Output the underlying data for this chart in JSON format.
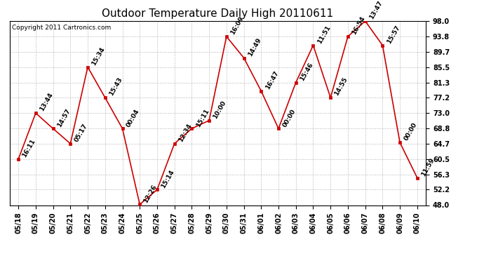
{
  "title": "Outdoor Temperature Daily High 20110611",
  "copyright": "Copyright 2011 Cartronics.com",
  "x_labels": [
    "05/18",
    "05/19",
    "05/20",
    "05/21",
    "05/22",
    "05/23",
    "05/24",
    "05/25",
    "05/26",
    "05/27",
    "05/28",
    "05/29",
    "05/30",
    "05/31",
    "06/01",
    "06/02",
    "06/03",
    "06/04",
    "06/05",
    "06/06",
    "06/07",
    "06/08",
    "06/09",
    "06/10"
  ],
  "y_values": [
    60.5,
    73.0,
    68.8,
    64.7,
    85.5,
    77.2,
    68.8,
    48.2,
    52.2,
    64.7,
    68.8,
    71.0,
    93.8,
    88.0,
    79.0,
    68.8,
    81.3,
    91.4,
    77.2,
    93.8,
    98.0,
    91.4,
    65.0,
    55.4
  ],
  "time_labels": [
    "16:11",
    "13:44",
    "14:57",
    "05:17",
    "15:34",
    "15:43",
    "00:04",
    "12:26",
    "15:14",
    "12:34",
    "15:11",
    "10:00",
    "16:09",
    "14:49",
    "16:47",
    "00:00",
    "15:46",
    "11:51",
    "14:55",
    "16:54",
    "13:47",
    "15:57",
    "00:00",
    "11:59"
  ],
  "ylim": [
    48.0,
    98.0
  ],
  "yticks": [
    48.0,
    52.2,
    56.3,
    60.5,
    64.7,
    68.8,
    73.0,
    77.2,
    81.3,
    85.5,
    89.7,
    93.8,
    98.0
  ],
  "line_color": "#cc0000",
  "marker_color": "#cc0000",
  "background_color": "#ffffff",
  "grid_color": "#aaaaaa",
  "title_fontsize": 11,
  "tick_fontsize": 7,
  "annotation_fontsize": 6.5
}
